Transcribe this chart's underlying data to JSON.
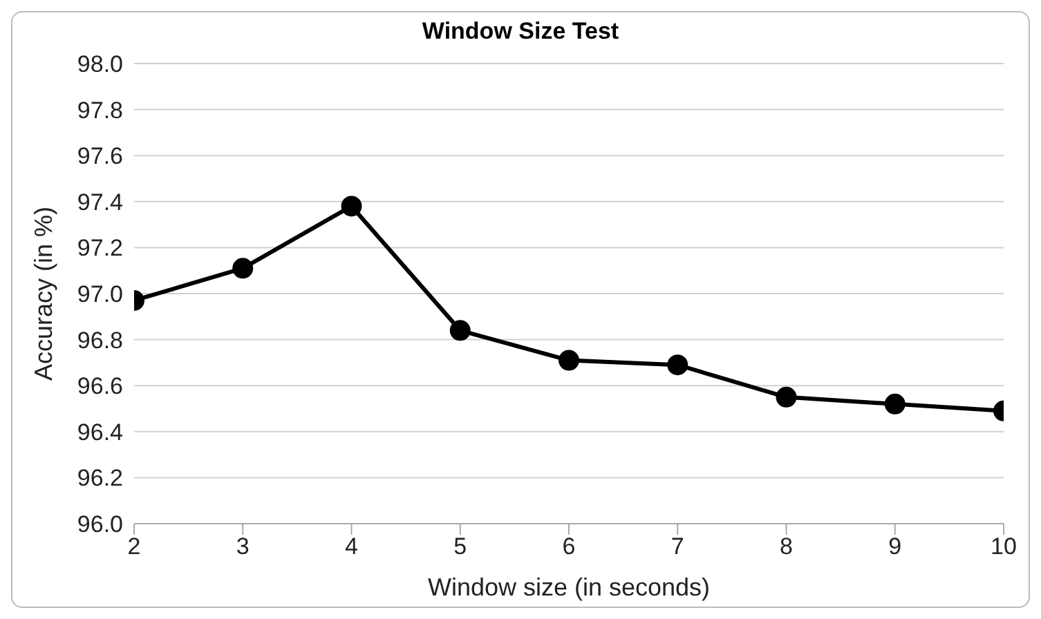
{
  "chart_data": {
    "type": "line",
    "title": "Window Size Test",
    "xlabel": "Window size (in seconds)",
    "ylabel": "Accuracy (in %)",
    "x": [
      2,
      3,
      4,
      5,
      6,
      7,
      8,
      9,
      10
    ],
    "series": [
      {
        "color": "#000000",
        "values": [
          96.97,
          97.11,
          97.38,
          96.84,
          96.71,
          96.69,
          96.55,
          96.52,
          96.49
        ]
      }
    ],
    "xlim": [
      2,
      10
    ],
    "xticks": [
      2,
      3,
      4,
      5,
      6,
      7,
      8,
      9,
      10
    ],
    "ylim": [
      96.0,
      98.0
    ],
    "yticks": [
      {
        "value": 96.0,
        "label": "96.0"
      },
      {
        "value": 96.2,
        "label": "96.2"
      },
      {
        "value": 96.4,
        "label": "96.4"
      },
      {
        "value": 96.6,
        "label": "96.6"
      },
      {
        "value": 96.8,
        "label": "96.8"
      },
      {
        "value": 97.0,
        "label": "97.0"
      },
      {
        "value": 97.2,
        "label": "97.2"
      },
      {
        "value": 97.4,
        "label": "97.4"
      },
      {
        "value": 97.6,
        "label": "97.6"
      },
      {
        "value": 97.8,
        "label": "97.8"
      },
      {
        "value": 98.0,
        "label": "98.0"
      }
    ],
    "grid": "y",
    "marker": "circle",
    "line_style": "solid",
    "legend": false
  }
}
